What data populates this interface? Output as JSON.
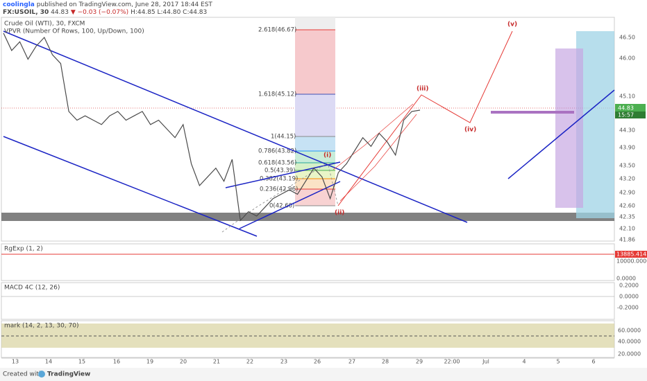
{
  "header": {
    "author": "coolingla",
    "published": "published on TradingView.com, June 28, 2017 18:44 EST",
    "symbol": "FX:USOIL, 30",
    "last": "44.83",
    "change": "▼ −0.03 (−0.07%)",
    "ohlc": "H:44.85 L:44.80 C:44.83"
  },
  "legend": {
    "series": "Crude Oil (WTI), 30, FXCM",
    "vpvr": "VPVR (Number Of Rows, 100, Up/Down, 100)"
  },
  "price_axis": {
    "labels": [
      "46.50",
      "46.00",
      "45.10",
      "44.30",
      "43.90",
      "43.50",
      "43.20",
      "42.90",
      "42.60",
      "42.35",
      "42.10",
      "41.86"
    ],
    "last_price": "44.83",
    "countdown": "15:57"
  },
  "time_axis": [
    "13",
    "14",
    "15",
    "16",
    "19",
    "20",
    "21",
    "22",
    "23",
    "26",
    "27",
    "28",
    "29",
    "22:00",
    "Jul",
    "4",
    "5",
    "6"
  ],
  "fib_levels": [
    "2.618(46.67)",
    "1.618(45.12)",
    "1(44.15)",
    "0.786(43.82)",
    "0.618(43.56)",
    "0.5(43.39)",
    "0.382(43.19)",
    "0.236(42.96)",
    "0(42.60)"
  ],
  "waves": [
    "(i)",
    "(ii)",
    "(iii)",
    "(iv)",
    "(v)"
  ],
  "indicators": [
    {
      "name": "RgExp (1, 2)",
      "labels": [
        "13885.4142",
        "10000.0000",
        "0.0000"
      ]
    },
    {
      "name": "MACD 4C (12, 26)",
      "labels": [
        "0.2000",
        "0.0000",
        "-0.2000"
      ]
    },
    {
      "name": "mark (14, 2, 13, 30, 70)",
      "labels": [
        "60.0000",
        "40.0000",
        "20.0000"
      ]
    }
  ],
  "price": {
    "values": [
      46.6,
      46.2,
      46.4,
      46.0,
      46.3,
      46.5,
      46.1,
      45.9,
      44.8,
      44.6,
      44.7,
      44.6,
      44.5,
      44.7,
      44.8,
      44.6,
      44.7,
      44.8,
      44.5,
      44.6,
      44.4,
      44.2,
      44.5,
      43.6,
      43.1,
      43.3,
      43.5,
      43.2,
      43.7,
      42.3,
      42.5,
      42.4,
      42.6,
      42.8,
      42.9,
      43.0,
      42.9,
      43.2,
      43.5,
      43.3,
      42.8,
      43.4,
      43.6,
      43.9,
      44.2,
      44.0,
      44.3,
      44.1,
      43.8,
      44.6,
      44.8,
      44.83
    ]
  },
  "footer": {
    "created": "Created with",
    "brand": "TradingView"
  }
}
